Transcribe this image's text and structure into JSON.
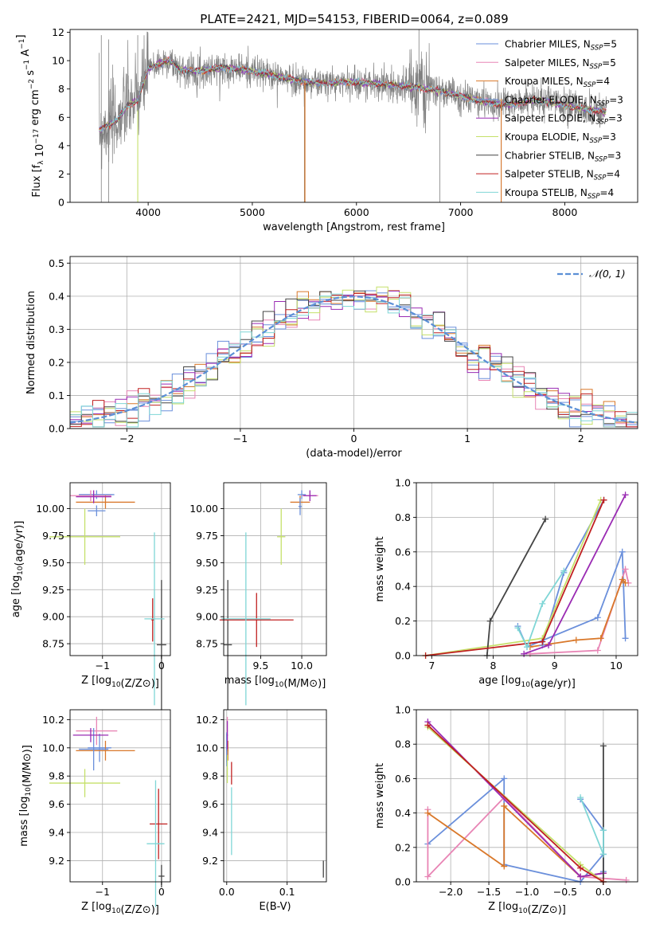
{
  "figure": {
    "title": "PLATE=2421, MJD=54153, FIBERID=0064, z=0.089"
  },
  "series_styles": [
    {
      "name": "Chabrier MILES, N_SSP=5",
      "label": "Chabrier MILES, N",
      "sub": "SSP",
      "suffix": "=5",
      "color": "#6a8fdb"
    },
    {
      "name": "Salpeter MILES, N_SSP=5",
      "label": "Salpeter MILES, N",
      "sub": "SSP",
      "suffix": "=5",
      "color": "#e885b5"
    },
    {
      "name": "Kroupa MILES, N_SSP=4",
      "label": "Kroupa MILES, N",
      "sub": "SSP",
      "suffix": "=4",
      "color": "#d9782a"
    },
    {
      "name": "Chabrier ELODIE, N_SSP=3",
      "label": "Chabrier ELODIE, N",
      "sub": "SSP",
      "suffix": "=3",
      "color": "#6a8fdb"
    },
    {
      "name": "Salpeter ELODIE, N_SSP=3",
      "label": "Salpeter ELODIE, N",
      "sub": "SSP",
      "suffix": "=3",
      "color": "#9a2bb3"
    },
    {
      "name": "Kroupa ELODIE, N_SSP=3",
      "label": "Kroupa ELODIE, N",
      "sub": "SSP",
      "suffix": "=3",
      "color": "#c5e06a"
    },
    {
      "name": "Chabrier STELIB, N_SSP=3",
      "label": "Chabrier STELIB, N",
      "sub": "SSP",
      "suffix": "=3",
      "color": "#444444"
    },
    {
      "name": "Salpeter STELIB, N_SSP=4",
      "label": "Salpeter STELIB, N",
      "sub": "SSP",
      "suffix": "=4",
      "color": "#c02020"
    },
    {
      "name": "Kroupa STELIB, N_SSP=4",
      "label": "Kroupa STELIB, N",
      "sub": "SSP",
      "suffix": "=4",
      "color": "#7fd6d6"
    }
  ],
  "chart_data": [
    {
      "id": "spectrum",
      "type": "line",
      "xlabel": "wavelength [Angstrom, rest frame]",
      "ylabel": "Flux [f_λ 10^-17 erg cm^-2 s^-1 A^-1]",
      "xlim": [
        3250,
        8700
      ],
      "ylim": [
        0,
        12.2
      ],
      "xticks": [
        4000,
        5000,
        6000,
        7000,
        8000
      ],
      "yticks": [
        0,
        2,
        4,
        6,
        8,
        10,
        12
      ],
      "grid": false,
      "legend": "upper right",
      "model_continuum": {
        "x": [
          3530,
          3600,
          3700,
          3800,
          3900,
          4000,
          4100,
          4200,
          4300,
          4400,
          4500,
          4700,
          4900,
          5100,
          5300,
          5500,
          5700,
          5900,
          6100,
          6300,
          6500,
          6700,
          6900,
          7100,
          7300,
          7500,
          7700,
          7900,
          8100,
          8300,
          8400
        ],
        "y": [
          5.1,
          5.4,
          5.8,
          6.8,
          7.2,
          9.4,
          9.8,
          10.0,
          9.4,
          9.3,
          9.3,
          9.5,
          9.4,
          9.1,
          8.8,
          8.5,
          8.4,
          8.5,
          8.4,
          8.3,
          8.2,
          8.0,
          7.7,
          7.3,
          7.0,
          6.9,
          7.2,
          7.0,
          6.7,
          6.5,
          6.4
        ]
      },
      "data_note": "observed spectrum drawn in gray with noise"
    },
    {
      "id": "residual_hist",
      "type": "histogram",
      "xlabel": "(data-model)/error",
      "ylabel": "Normed distribution",
      "xlim": [
        -2.5,
        2.5
      ],
      "ylim": [
        0,
        0.52
      ],
      "xticks": [
        -2,
        -1,
        0,
        1,
        2
      ],
      "yticks": [
        0.0,
        0.1,
        0.2,
        0.3,
        0.4,
        0.5
      ],
      "grid": true,
      "legend": "upper right",
      "reference": {
        "label": "𝒩(0, 1)",
        "color": "#5b8fd6",
        "mean": 0,
        "sigma": 1
      },
      "bin_width": 0.1
    },
    {
      "id": "age_vs_Z",
      "type": "errorbar",
      "xlabel": "Z [log10(Z/Z⊙)]",
      "ylabel": "age  [log10(age/yr)]",
      "xlim": [
        -1.55,
        0.15
      ],
      "ylim": [
        8.64,
        10.24
      ],
      "xticks": [
        -1,
        0
      ],
      "yticks": [
        8.75,
        9.0,
        9.25,
        9.5,
        9.75,
        10.0
      ],
      "grid": true,
      "points": [
        {
          "x": -1.1,
          "y": 10.13,
          "xerr": 0.3,
          "yerr": 0.04,
          "s": 0
        },
        {
          "x": -1.2,
          "y": 10.12,
          "xerr": 0.35,
          "yerr": 0.05,
          "s": 1
        },
        {
          "x": -0.95,
          "y": 10.06,
          "xerr": 0.5,
          "yerr": 0.06,
          "s": 2
        },
        {
          "x": -1.1,
          "y": 9.98,
          "xerr": 0.15,
          "yerr": 0.05,
          "s": 3
        },
        {
          "x": -1.15,
          "y": 10.11,
          "xerr": 0.3,
          "yerr": 0.06,
          "s": 4
        },
        {
          "x": -1.3,
          "y": 9.74,
          "xerr": 0.6,
          "yerr": 0.26,
          "s": 5
        },
        {
          "x": 0.0,
          "y": 8.74,
          "xerr": 0.08,
          "yerr": 0.6,
          "s": 6
        },
        {
          "x": -0.15,
          "y": 8.97,
          "xerr": 0.02,
          "yerr": 0.2,
          "s": 7
        },
        {
          "x": -0.12,
          "y": 8.98,
          "xerr": 0.17,
          "yerr": 0.8,
          "s": 8
        }
      ]
    },
    {
      "id": "age_vs_mass",
      "type": "errorbar",
      "xlabel": "mass [log10(M/M⊙)]",
      "ylabel": "",
      "xlim": [
        9.05,
        10.3
      ],
      "ylim": [
        8.64,
        10.24
      ],
      "xticks": [
        9.5,
        10.0
      ],
      "yticks": [
        8.75,
        9.0,
        9.25,
        9.5,
        9.75,
        10.0
      ],
      "grid": true,
      "points": [
        {
          "x": 10.0,
          "y": 10.13,
          "xerr": 0.05,
          "yerr": 0.04,
          "s": 0
        },
        {
          "x": 10.1,
          "y": 10.12,
          "xerr": 0.1,
          "yerr": 0.05,
          "s": 1
        },
        {
          "x": 9.98,
          "y": 10.06,
          "xerr": 0.12,
          "yerr": 0.06,
          "s": 2
        },
        {
          "x": 9.98,
          "y": 10.02,
          "xerr": 0.02,
          "yerr": 0.08,
          "s": 3
        },
        {
          "x": 10.1,
          "y": 10.12,
          "xerr": 0.08,
          "yerr": 0.05,
          "s": 4
        },
        {
          "x": 9.75,
          "y": 9.74,
          "xerr": 0.05,
          "yerr": 0.26,
          "s": 5
        },
        {
          "x": 9.1,
          "y": 8.74,
          "xerr": 0.05,
          "yerr": 0.6,
          "s": 6
        },
        {
          "x": 9.45,
          "y": 8.97,
          "xerr": 0.45,
          "yerr": 0.25,
          "s": 7
        },
        {
          "x": 9.32,
          "y": 8.98,
          "xerr": 0.3,
          "yerr": 0.8,
          "s": 8
        }
      ]
    },
    {
      "id": "weight_vs_age",
      "type": "line",
      "xlabel": "age  [log10(age/yr)]",
      "ylabel": "mass weight",
      "xlim": [
        6.75,
        10.35
      ],
      "ylim": [
        0,
        1.0
      ],
      "xticks": [
        7,
        8,
        9,
        10
      ],
      "yticks": [
        0.0,
        0.2,
        0.4,
        0.6,
        0.8,
        1.0
      ],
      "grid": true,
      "series": [
        {
          "s": 0,
          "x": [
            8.4,
            8.55,
            9.7,
            10.1,
            10.15
          ],
          "y": [
            0.17,
            0.05,
            0.22,
            0.6,
            0.1
          ]
        },
        {
          "s": 1,
          "x": [
            8.6,
            9.7,
            10.15,
            10.2
          ],
          "y": [
            0.01,
            0.03,
            0.5,
            0.42
          ]
        },
        {
          "s": 2,
          "x": [
            8.6,
            9.35,
            9.75,
            10.1,
            10.15
          ],
          "y": [
            0.05,
            0.09,
            0.1,
            0.44,
            0.42
          ]
        },
        {
          "s": 3,
          "x": [
            8.8,
            9.15,
            9.8
          ],
          "y": [
            0.06,
            0.48,
            0.9
          ]
        },
        {
          "s": 4,
          "x": [
            8.5,
            8.9,
            10.15
          ],
          "y": [
            0.01,
            0.06,
            0.93
          ]
        },
        {
          "s": 5,
          "x": [
            6.9,
            8.8,
            9.75
          ],
          "y": [
            0.0,
            0.1,
            0.9
          ]
        },
        {
          "s": 6,
          "x": [
            7.9,
            7.95,
            8.85
          ],
          "y": [
            0.0,
            0.2,
            0.79
          ]
        },
        {
          "s": 7,
          "x": [
            6.9,
            8.8,
            9.8
          ],
          "y": [
            0.0,
            0.08,
            0.9
          ]
        },
        {
          "s": 8,
          "x": [
            8.4,
            8.55,
            8.8,
            9.15
          ],
          "y": [
            0.16,
            0.05,
            0.3,
            0.49
          ]
        }
      ]
    },
    {
      "id": "mass_vs_Z",
      "type": "errorbar",
      "xlabel": "Z [log10(Z/Z⊙)]",
      "ylabel": "mass [log10(M/M⊙)]",
      "xlim": [
        -1.55,
        0.15
      ],
      "ylim": [
        9.05,
        10.27
      ],
      "xticks": [
        -1,
        0
      ],
      "yticks": [
        9.2,
        9.4,
        9.6,
        9.8,
        10.0,
        10.2
      ],
      "grid": true,
      "points": [
        {
          "x": -1.05,
          "y": 10.0,
          "xerr": 0.2,
          "yerr": 0.1,
          "s": 0
        },
        {
          "x": -1.1,
          "y": 10.12,
          "xerr": 0.35,
          "yerr": 0.1,
          "s": 1
        },
        {
          "x": -0.95,
          "y": 9.98,
          "xerr": 0.5,
          "yerr": 0.07,
          "s": 2
        },
        {
          "x": -1.15,
          "y": 9.99,
          "xerr": 0.25,
          "yerr": 0.15,
          "s": 3
        },
        {
          "x": -1.2,
          "y": 10.09,
          "xerr": 0.3,
          "yerr": 0.05,
          "s": 4
        },
        {
          "x": -1.3,
          "y": 9.75,
          "xerr": 0.6,
          "yerr": 0.1,
          "s": 5
        },
        {
          "x": 0.0,
          "y": 9.09,
          "xerr": 0.05,
          "yerr": 0.08,
          "s": 6
        },
        {
          "x": -0.05,
          "y": 9.46,
          "xerr": 0.15,
          "yerr": 0.25,
          "s": 7
        },
        {
          "x": -0.1,
          "y": 9.32,
          "xerr": 0.15,
          "yerr": 0.45,
          "s": 8
        }
      ]
    },
    {
      "id": "mass_vs_ebv",
      "type": "errorbar",
      "xlabel": "E(B-V)",
      "ylabel": "",
      "xlim": [
        -0.005,
        0.165
      ],
      "ylim": [
        9.05,
        10.27
      ],
      "xticks": [
        0.0,
        0.1
      ],
      "yticks": [
        9.2,
        9.4,
        9.6,
        9.8,
        10.0,
        10.2
      ],
      "grid": true,
      "points": [
        {
          "x": 0.0,
          "y": 10.0,
          "xerr": 0.001,
          "yerr": 0.1,
          "s": 0
        },
        {
          "x": 0.001,
          "y": 10.12,
          "xerr": 0.001,
          "yerr": 0.1,
          "s": 1
        },
        {
          "x": 0.002,
          "y": 9.98,
          "xerr": 0.001,
          "yerr": 0.07,
          "s": 2
        },
        {
          "x": 0.0,
          "y": 9.99,
          "xerr": 0.001,
          "yerr": 0.12,
          "s": 3
        },
        {
          "x": 0.001,
          "y": 10.09,
          "xerr": 0.001,
          "yerr": 0.1,
          "s": 4
        },
        {
          "x": 0.001,
          "y": 9.85,
          "xerr": 0.001,
          "yerr": 0.1,
          "s": 5
        },
        {
          "x": 0.16,
          "y": 9.14,
          "xerr": 0.0,
          "yerr": 0.06,
          "s": 6
        },
        {
          "x": 0.008,
          "y": 9.82,
          "xerr": 0.0,
          "yerr": 0.08,
          "s": 7
        },
        {
          "x": 0.008,
          "y": 9.48,
          "xerr": 0.0,
          "yerr": 0.24,
          "s": 8
        }
      ]
    },
    {
      "id": "weight_vs_Z",
      "type": "line",
      "xlabel": "Z [log10(Z/Z⊙)]",
      "ylabel": "mass weight",
      "xlim": [
        -2.45,
        0.45
      ],
      "ylim": [
        0,
        1.0
      ],
      "xticks": [
        -2.0,
        -1.5,
        -1.0,
        -0.5,
        0.0
      ],
      "yticks": [
        0.0,
        0.2,
        0.4,
        0.6,
        0.8,
        1.0
      ],
      "grid": true,
      "series": [
        {
          "s": 0,
          "x": [
            -2.3,
            -1.3,
            -1.3,
            -0.3,
            0.0
          ],
          "y": [
            0.22,
            0.6,
            0.1,
            0.0,
            0.16
          ]
        },
        {
          "s": 1,
          "x": [
            -2.3,
            -2.3,
            -1.3,
            -0.3,
            0.3
          ],
          "y": [
            0.42,
            0.03,
            0.49,
            0.03,
            0.01
          ]
        },
        {
          "s": 2,
          "x": [
            -2.3,
            -1.3,
            -1.3,
            -0.3,
            0.0
          ],
          "y": [
            0.4,
            0.09,
            0.44,
            0.03,
            0.05
          ]
        },
        {
          "s": 3,
          "x": [
            -0.3,
            0.0,
            0.0
          ],
          "y": [
            0.48,
            0.3,
            0.06
          ]
        },
        {
          "s": 4,
          "x": [
            -2.3,
            -0.3,
            0.0
          ],
          "y": [
            0.93,
            0.03,
            0.05
          ]
        },
        {
          "s": 5,
          "x": [
            -2.3,
            -0.3,
            0.0
          ],
          "y": [
            0.9,
            0.1,
            0.0
          ]
        },
        {
          "s": 6,
          "x": [
            0.0,
            0.0
          ],
          "y": [
            0.79,
            0.0
          ]
        },
        {
          "s": 7,
          "x": [
            -2.3,
            -0.3,
            0.0
          ],
          "y": [
            0.91,
            0.08,
            0.0
          ]
        },
        {
          "s": 8,
          "x": [
            -0.3,
            0.0,
            0.0
          ],
          "y": [
            0.49,
            0.16,
            0.3
          ]
        }
      ]
    }
  ]
}
